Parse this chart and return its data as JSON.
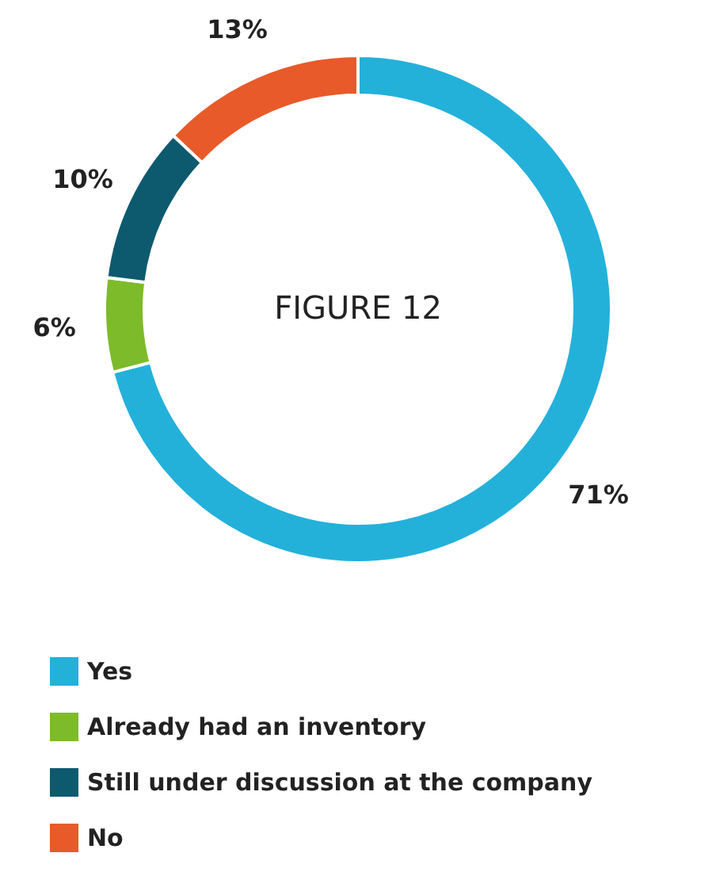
{
  "chart_data": {
    "type": "donut",
    "title": "FIGURE 12",
    "categories": [
      "Yes",
      "Already had an inventory",
      "Still under discussion at the company",
      "No"
    ],
    "values": [
      71,
      6,
      10,
      13
    ],
    "colors": [
      "#23b1da",
      "#7dbb2a",
      "#0d5a6e",
      "#e85a2a"
    ],
    "value_labels": [
      "71%",
      "6%",
      "10%",
      "13%"
    ],
    "legend": "bottom"
  }
}
